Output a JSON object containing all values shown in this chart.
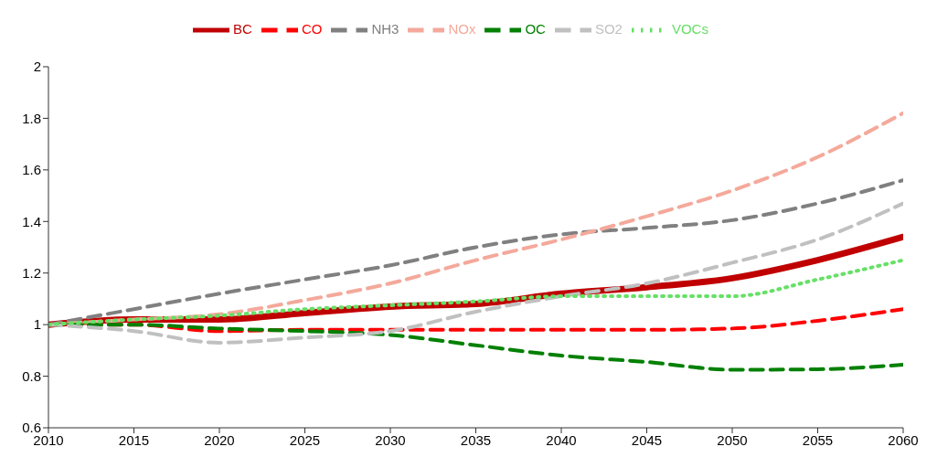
{
  "chart_data": {
    "type": "line",
    "x": [
      2010,
      2015,
      2020,
      2025,
      2030,
      2035,
      2040,
      2045,
      2050,
      2055,
      2060
    ],
    "xlim": [
      2010,
      2060
    ],
    "xticks": [
      2010,
      2015,
      2020,
      2025,
      2030,
      2035,
      2040,
      2045,
      2050,
      2055,
      2060
    ],
    "ylim": [
      0.6,
      2
    ],
    "yticks": [
      0.6,
      0.8,
      1,
      1.2,
      1.4,
      1.6,
      1.8,
      2
    ],
    "grid": false,
    "legend": "top",
    "marker": "none",
    "series": [
      {
        "name": "BC",
        "color": "#c00000",
        "line_style": "solid",
        "values": [
          1,
          1.02,
          1.02,
          1.045,
          1.07,
          1.08,
          1.12,
          1.145,
          1.18,
          1.25,
          1.34
        ]
      },
      {
        "name": "CO",
        "color": "#ff0000",
        "line_style": "dashed",
        "values": [
          1,
          1,
          0.975,
          0.98,
          0.98,
          0.98,
          0.98,
          0.98,
          0.985,
          1.015,
          1.06
        ]
      },
      {
        "name": "NH3",
        "color": "#808080",
        "line_style": "dashed",
        "values": [
          1,
          1.06,
          1.12,
          1.175,
          1.23,
          1.3,
          1.35,
          1.375,
          1.405,
          1.47,
          1.56
        ]
      },
      {
        "name": "NOx",
        "color": "#f4a99b",
        "line_style": "dashed",
        "values": [
          1,
          1.02,
          1.04,
          1.095,
          1.16,
          1.25,
          1.33,
          1.42,
          1.52,
          1.65,
          1.82
        ]
      },
      {
        "name": "OC",
        "color": "#008000",
        "line_style": "dashed",
        "values": [
          1,
          1,
          0.985,
          0.975,
          0.96,
          0.92,
          0.88,
          0.855,
          0.825,
          0.827,
          0.845
        ]
      },
      {
        "name": "SO2",
        "color": "#c0c0c0",
        "line_style": "dashed",
        "values": [
          1,
          0.975,
          0.93,
          0.95,
          0.975,
          1.05,
          1.11,
          1.16,
          1.24,
          1.33,
          1.47
        ]
      },
      {
        "name": "VOCs",
        "color": "#66e066",
        "line_style": "dotted",
        "values": [
          1,
          1.02,
          1.035,
          1.06,
          1.075,
          1.09,
          1.11,
          1.11,
          1.11,
          1.175,
          1.25
        ]
      }
    ]
  }
}
